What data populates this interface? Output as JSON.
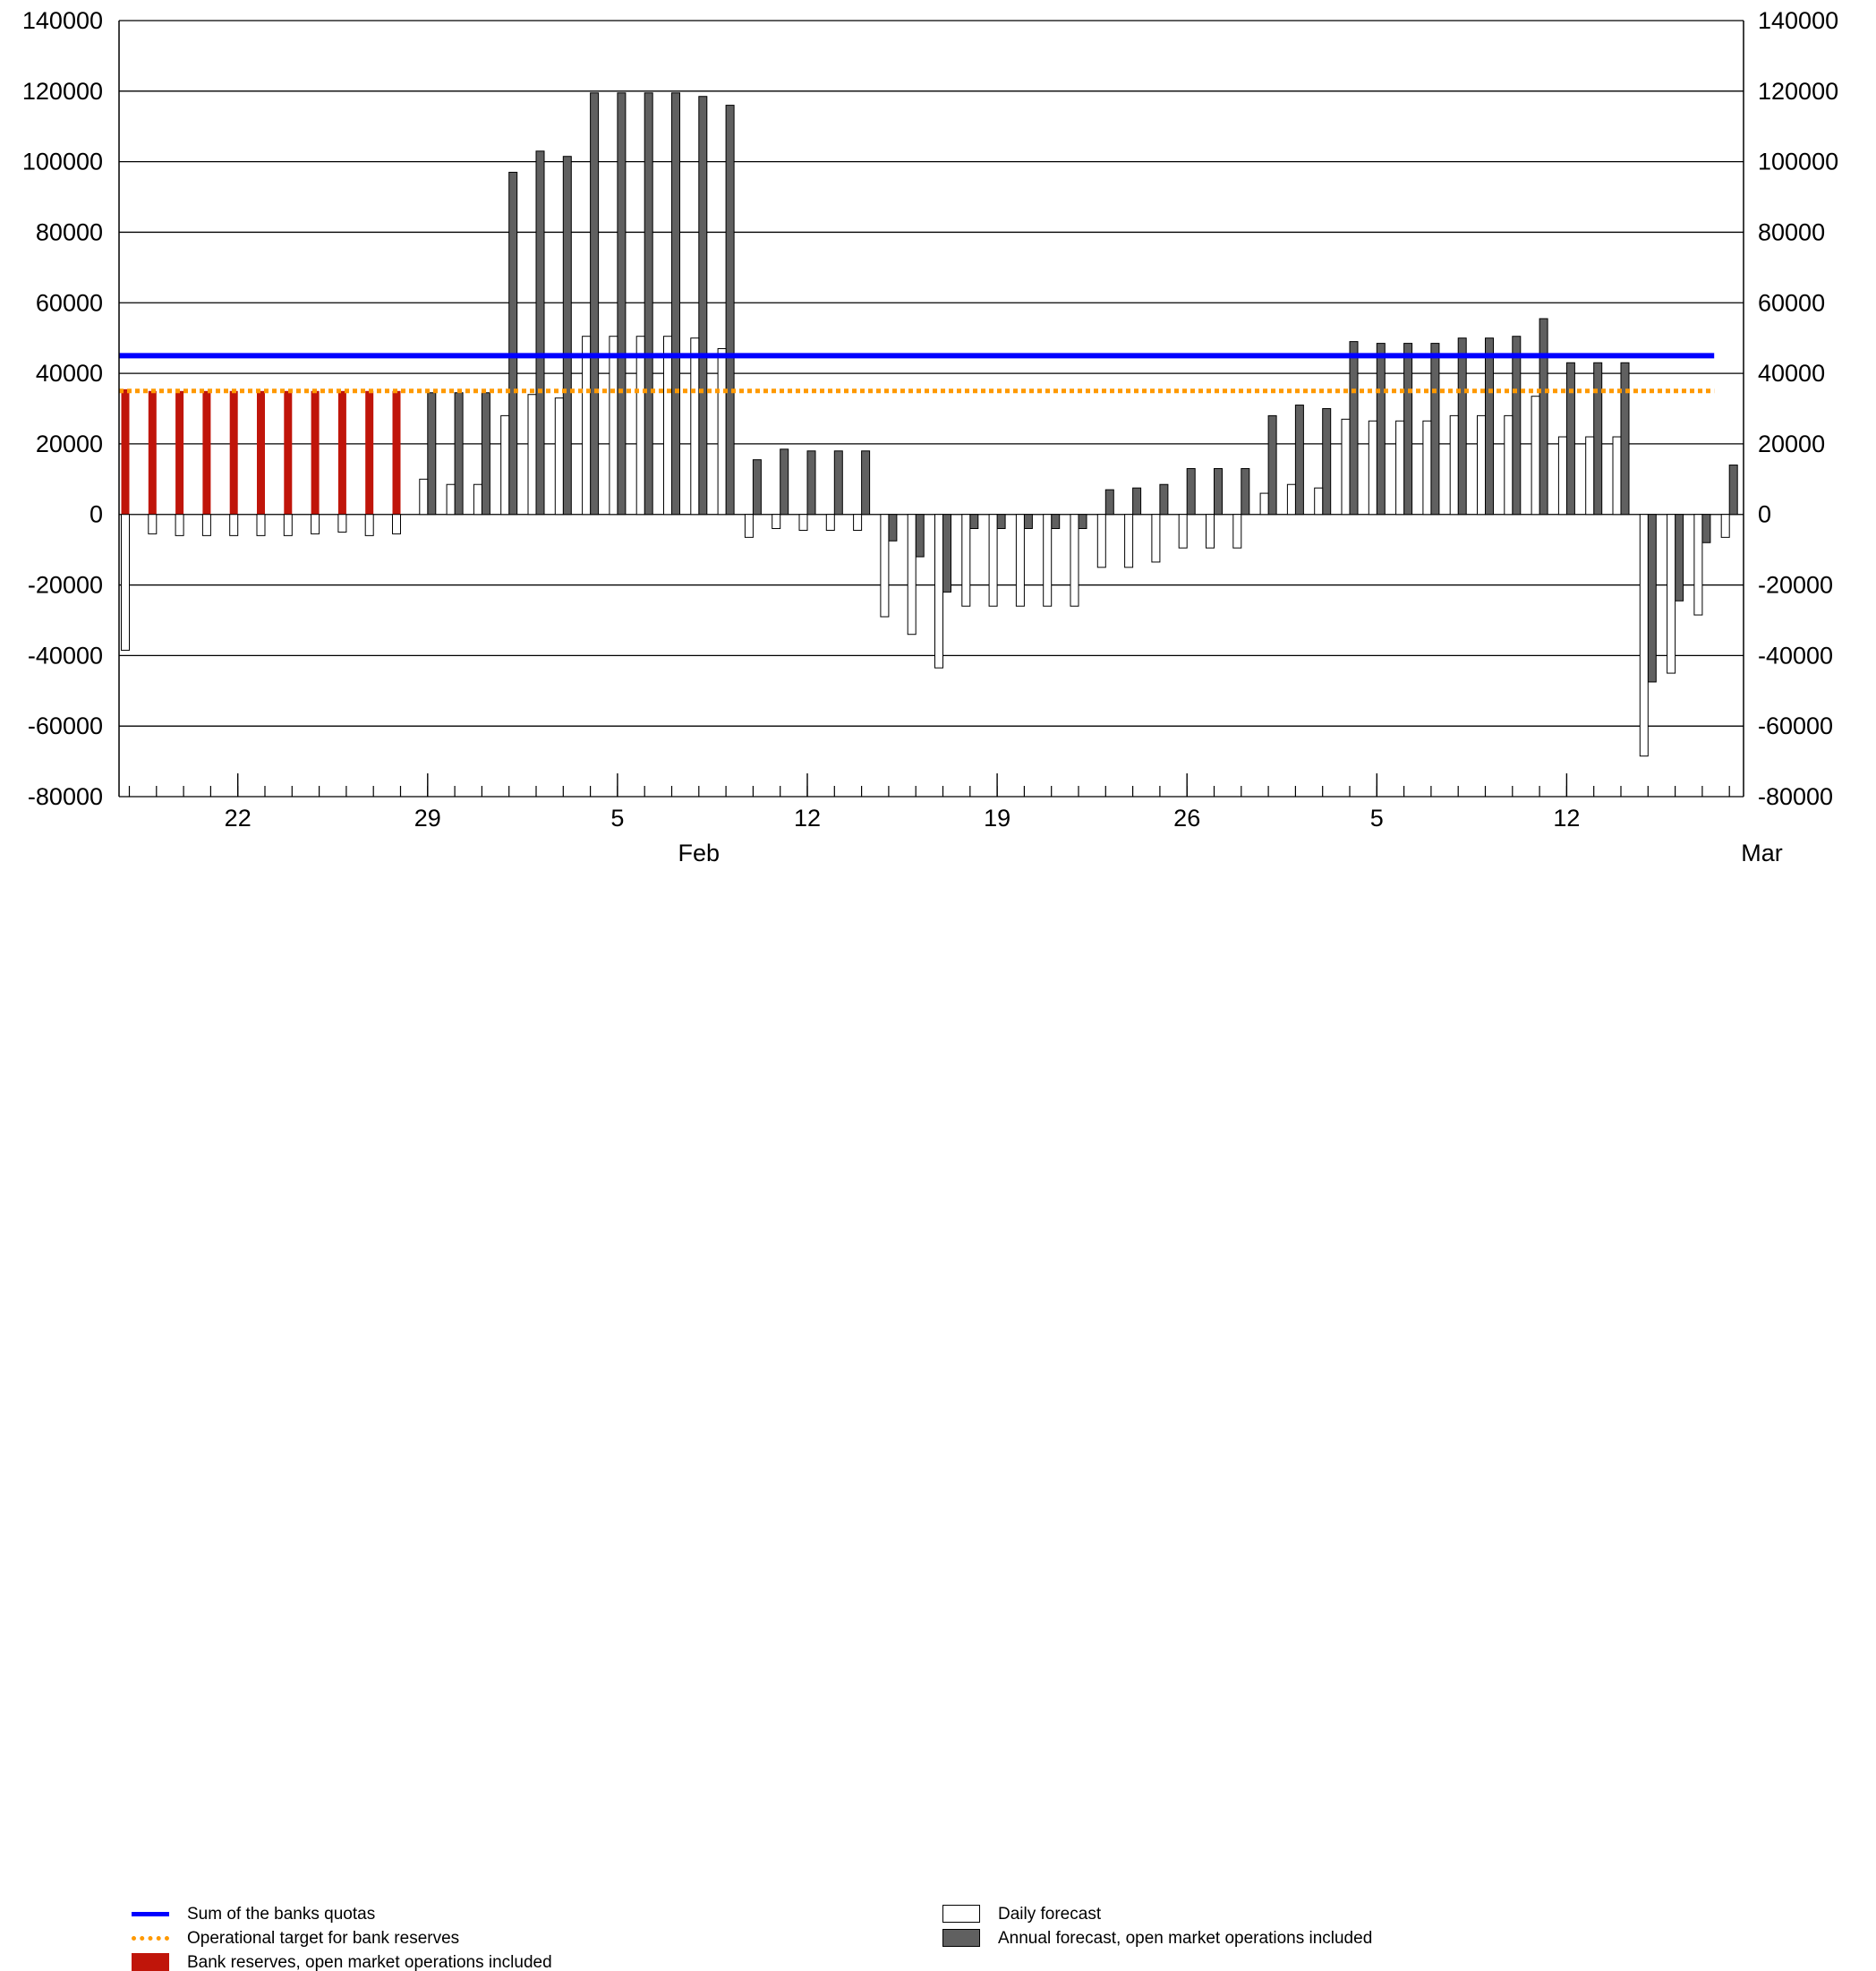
{
  "chart_data": {
    "type": "bar",
    "ylim": [
      -80000,
      140000
    ],
    "ytick_labels": [
      "140000",
      "120000",
      "100000",
      "80000",
      "60000",
      "40000",
      "20000",
      "0",
      "-20000",
      "-40000",
      "-60000",
      "-80000"
    ],
    "xtick_labels": [
      "22",
      "29",
      "5",
      "12",
      "19",
      "26",
      "5",
      "12"
    ],
    "month_labels": [
      "Feb",
      "Mar"
    ],
    "num_days": 60,
    "sum_of_quotas": 45000,
    "operational_target": 35000,
    "bank_reserves": [
      35500,
      35000,
      35000,
      35000,
      35000,
      35000,
      35000,
      35000,
      35000,
      35000,
      35000
    ],
    "daily_forecast": [
      -38500,
      -5500,
      -6000,
      -6000,
      -6000,
      -6000,
      -6000,
      -5500,
      -5000,
      -6000,
      -5500,
      10000,
      8500,
      8500,
      28000,
      34000,
      33000,
      50500,
      50500,
      50500,
      50500,
      50000,
      47000,
      -6500,
      -4000,
      -4500,
      -4500,
      -4500,
      -29000,
      -34000,
      -43500,
      -26000,
      -26000,
      -26000,
      -26000,
      -26000,
      -15000,
      -15000,
      -13500,
      -9500,
      -9500,
      -9500,
      6000,
      8500,
      7500,
      27000,
      26500,
      26500,
      26500,
      28000,
      28000,
      28000,
      33500,
      22000,
      22000,
      22000,
      -68500,
      -45000,
      -28500,
      -6500
    ],
    "annual_forecast": [
      null,
      null,
      null,
      null,
      null,
      null,
      null,
      null,
      null,
      null,
      null,
      34500,
      34500,
      34500,
      97000,
      103000,
      101500,
      119500,
      119500,
      119500,
      119500,
      118500,
      116000,
      15500,
      18500,
      18000,
      18000,
      18000,
      -7500,
      -12000,
      -22000,
      -4000,
      -4000,
      -4000,
      -4000,
      -4000,
      7000,
      7500,
      8500,
      13000,
      13000,
      13000,
      28000,
      31000,
      30000,
      49000,
      48500,
      48500,
      48500,
      50000,
      50000,
      50500,
      55500,
      43000,
      43000,
      43000,
      -47500,
      -24500,
      -8000,
      14000
    ],
    "colors": {
      "quotas": "#0000ff",
      "target": "#ff9900",
      "reserves": "#c0150a",
      "daily": "#ffffff",
      "annual": "#606060",
      "grid": "#000000"
    },
    "legend": {
      "quotas": "Sum of the banks quotas",
      "target": "Operational target for bank reserves",
      "reserves": "Bank reserves, open market operations included",
      "daily": "Daily forecast",
      "annual": "Annual forecast, open market operations included"
    }
  }
}
